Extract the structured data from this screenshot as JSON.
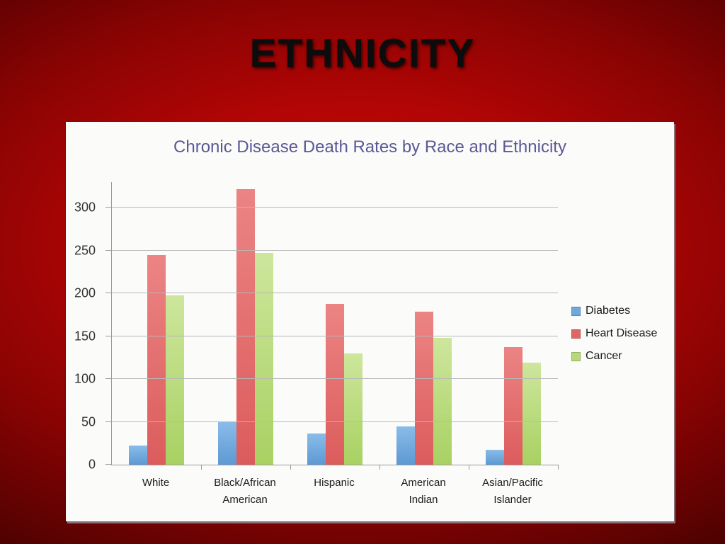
{
  "slide": {
    "title": "ETHNICITY",
    "background_color": "#b10505",
    "title_color": "#0c0c0c"
  },
  "chart_data": {
    "type": "bar",
    "title": "Chronic Disease Death Rates by Race and Ethnicity",
    "title_color": "#5b5894",
    "categories": [
      "White",
      "Black/African American",
      "Hispanic",
      "American Indian",
      "Asian/Pacific Islander"
    ],
    "series": [
      {
        "name": "Diabetes",
        "color": "#6fa8dc",
        "color_top": "#8abce8",
        "color_bottom": "#5d99d3",
        "values": [
          22,
          50,
          36,
          45,
          17
        ]
      },
      {
        "name": "Heart Disease",
        "color": "#e06666",
        "color_top": "#ec8484",
        "color_bottom": "#dc5c5c",
        "values": [
          245,
          322,
          188,
          179,
          137
        ]
      },
      {
        "name": "Cancer",
        "color": "#b6d77a",
        "color_top": "#cde69c",
        "color_bottom": "#a8d162",
        "values": [
          198,
          247,
          130,
          148,
          119
        ]
      }
    ],
    "yticks": [
      0,
      50,
      100,
      150,
      200,
      250,
      300
    ],
    "ylim": [
      0,
      330
    ],
    "grid": true,
    "legend_position": "right",
    "xlabel": "",
    "ylabel": ""
  }
}
